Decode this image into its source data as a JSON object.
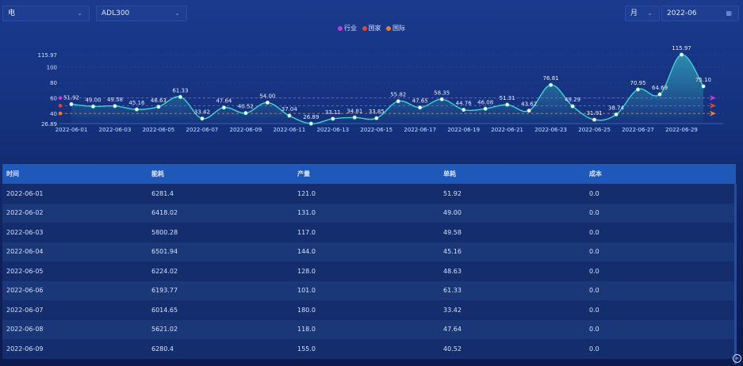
{
  "controls": {
    "energy_select": "电",
    "model_select": "ADL300",
    "period_select": "月",
    "date_input": "2022-06"
  },
  "legend": [
    {
      "label": "行业",
      "color": "#c13bd8"
    },
    {
      "label": "国家",
      "color": "#e8412f"
    },
    {
      "label": "国际",
      "color": "#ef7a2a"
    }
  ],
  "chart_data": {
    "type": "line",
    "x": [
      "2022-06-01",
      "2022-06-02",
      "2022-06-03",
      "2022-06-04",
      "2022-06-05",
      "2022-06-06",
      "2022-06-07",
      "2022-06-08",
      "2022-06-09",
      "2022-06-10",
      "2022-06-11",
      "2022-06-12",
      "2022-06-13",
      "2022-06-14",
      "2022-06-15",
      "2022-06-16",
      "2022-06-17",
      "2022-06-18",
      "2022-06-19",
      "2022-06-20",
      "2022-06-21",
      "2022-06-22",
      "2022-06-23",
      "2022-06-24",
      "2022-06-25",
      "2022-06-26",
      "2022-06-27",
      "2022-06-28",
      "2022-06-29",
      "2022-06-30"
    ],
    "x_tick_labels": [
      "2022-06-01",
      "2022-06-03",
      "2022-06-05",
      "2022-06-07",
      "2022-06-09",
      "2022-06-11",
      "2022-06-13",
      "2022-06-15",
      "2022-06-17",
      "2022-06-19",
      "2022-06-21",
      "2022-06-23",
      "2022-06-25",
      "2022-06-27",
      "2022-06-29"
    ],
    "values": [
      51.92,
      49.0,
      49.58,
      45.16,
      48.63,
      61.33,
      33.42,
      47.64,
      40.52,
      54.0,
      37.04,
      26.89,
      33.11,
      34.81,
      33.85,
      55.82,
      47.65,
      58.35,
      44.76,
      46.08,
      51.31,
      43.62,
      76.81,
      49.29,
      31.91,
      38.74,
      70.95,
      64.69,
      115.97,
      75.1
    ],
    "y_tick_labels": [
      "115.97",
      "100",
      "80",
      "60",
      "40",
      "26.89"
    ],
    "ylim": [
      26.89,
      115.97
    ],
    "reference_lines": [
      {
        "name": "行业",
        "value": 60,
        "color": "#c13bd8"
      },
      {
        "name": "国家",
        "value": 50,
        "color": "#e8412f"
      },
      {
        "name": "国际",
        "value": 40,
        "color": "#ef7a2a"
      }
    ],
    "line_color": "#3fd3cf"
  },
  "table": {
    "headers": [
      "时间",
      "能耗",
      "产量",
      "单耗",
      "成本"
    ],
    "rows": [
      [
        "2022-06-01",
        "6281.4",
        "121.0",
        "51.92",
        "0.0"
      ],
      [
        "2022-06-02",
        "6418.02",
        "131.0",
        "49.00",
        "0.0"
      ],
      [
        "2022-06-03",
        "5800.28",
        "117.0",
        "49.58",
        "0.0"
      ],
      [
        "2022-06-04",
        "6501.94",
        "144.0",
        "45.16",
        "0.0"
      ],
      [
        "2022-06-05",
        "6224.02",
        "128.0",
        "48.63",
        "0.0"
      ],
      [
        "2022-06-06",
        "6193.77",
        "101.0",
        "61.33",
        "0.0"
      ],
      [
        "2022-06-07",
        "6014.65",
        "180.0",
        "33.42",
        "0.0"
      ],
      [
        "2022-06-08",
        "5621.02",
        "118.0",
        "47.64",
        "0.0"
      ],
      [
        "2022-06-09",
        "6280.4",
        "155.0",
        "40.52",
        "0.0"
      ]
    ]
  }
}
